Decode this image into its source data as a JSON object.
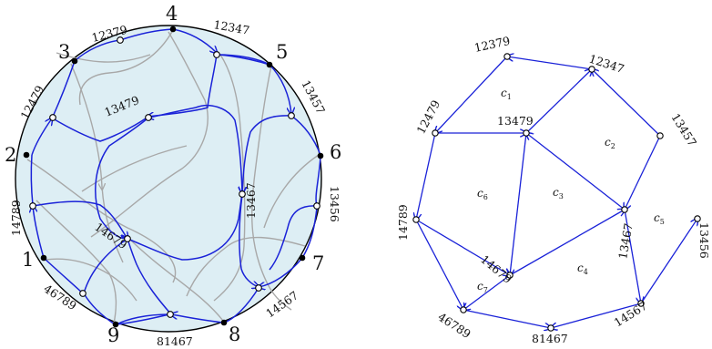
{
  "left_diagram": {
    "boundary_numbers": [
      "1",
      "2",
      "3",
      "4",
      "5",
      "6",
      "7",
      "8",
      "9"
    ],
    "vertex_labels": [
      "12379",
      "12347",
      "13457",
      "13456",
      "14567",
      "81467",
      "46789",
      "14789",
      "12479",
      "13479",
      "13467",
      "14679"
    ],
    "colors": {
      "disk_fill": "#ddeef4",
      "blue": "#1a22d8",
      "gray": "#a8a8a8",
      "black": "#000000"
    }
  },
  "right_graph": {
    "vertex_labels": [
      "12379",
      "12347",
      "13457",
      "13456",
      "14567",
      "81467",
      "46789",
      "14789",
      "12479",
      "13479",
      "13467",
      "14679"
    ],
    "cells": [
      {
        "letter": "c",
        "sub": "1"
      },
      {
        "letter": "c",
        "sub": "2"
      },
      {
        "letter": "c",
        "sub": "3"
      },
      {
        "letter": "c",
        "sub": "4"
      },
      {
        "letter": "c",
        "sub": "5"
      },
      {
        "letter": "c",
        "sub": "6"
      },
      {
        "letter": "c",
        "sub": "7"
      }
    ],
    "edge_color": "#1a22d8"
  }
}
